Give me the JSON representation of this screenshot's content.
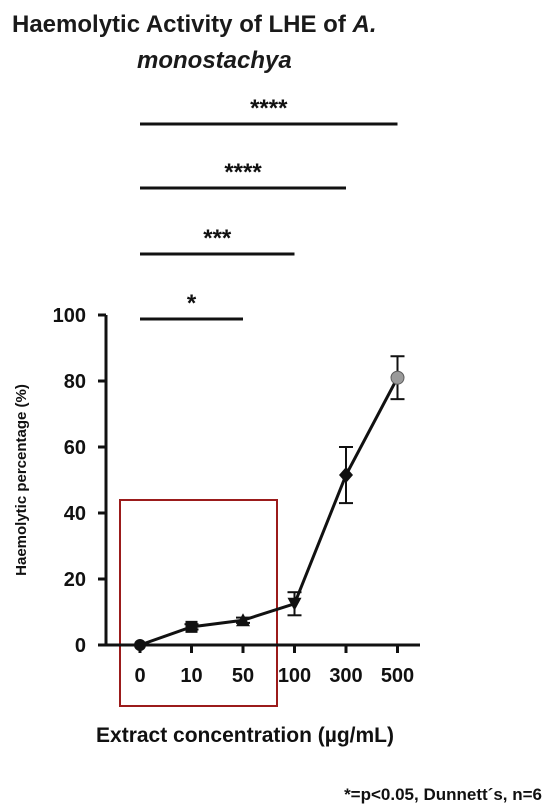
{
  "chart_data": {
    "type": "line",
    "title_line1_regular": "Haemolytic Activity of LHE of ",
    "title_line1_italic": "A.",
    "title_line2_italic": "monostachya",
    "xlabel": "Extract concentration (µg/mL)",
    "ylabel": "Haemolytic percentage (%)",
    "ylim": [
      0,
      100
    ],
    "yticks": [
      0,
      20,
      40,
      60,
      80,
      100
    ],
    "categories": [
      "0",
      "10",
      "50",
      "100",
      "300",
      "500"
    ],
    "values": [
      0,
      5.5,
      7.5,
      12.5,
      51.5,
      81
    ],
    "errors": [
      0,
      0.8,
      0.8,
      3.5,
      8.5,
      6.5
    ],
    "markers": [
      "circle",
      "square",
      "triangle-up",
      "triangle-down",
      "diamond",
      "circle-grey"
    ],
    "marker_colors": {
      "default": "#111111",
      "last": "#9a9a9a"
    },
    "significance": [
      {
        "from": "0",
        "to": "50",
        "label": "*"
      },
      {
        "from": "0",
        "to": "100",
        "label": "***"
      },
      {
        "from": "0",
        "to": "300",
        "label": "****"
      },
      {
        "from": "0",
        "to": "500",
        "label": "****"
      }
    ],
    "highlight_box": {
      "from": "0",
      "to": "50",
      "color": "#9b1b1b"
    },
    "footnote": "*=p<0.05, Dunnett´s, n=6",
    "grid": false,
    "legend": "none"
  }
}
